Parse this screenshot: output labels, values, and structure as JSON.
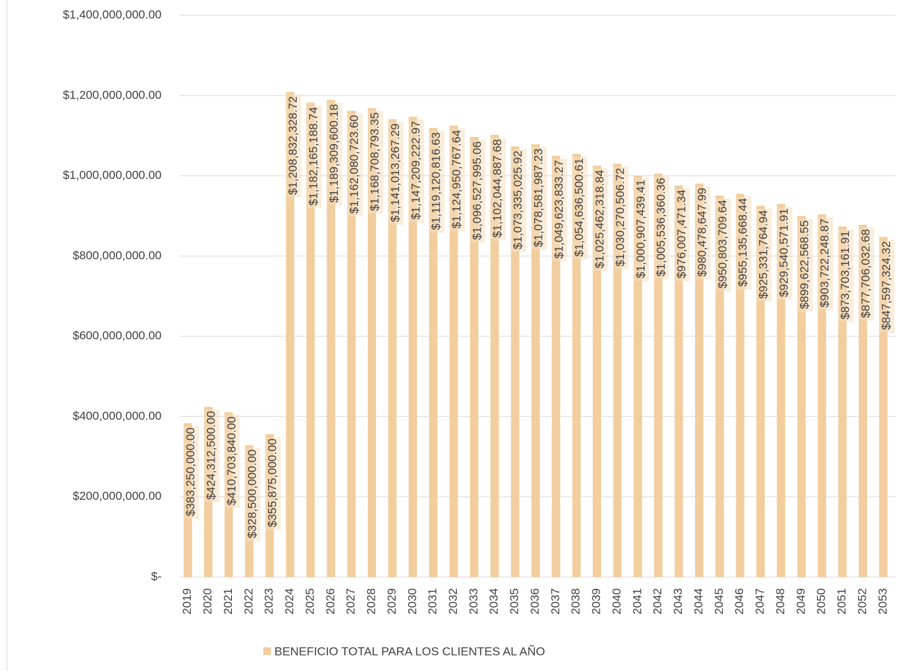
{
  "chart_data": {
    "type": "bar",
    "legend": "BENEFICIO TOTAL PARA LOS CLIENTES AL AÑO",
    "color": "#f2cd9e",
    "categories": [
      "2019",
      "2020",
      "2021",
      "2022",
      "2023",
      "2024",
      "2025",
      "2026",
      "2027",
      "2028",
      "2029",
      "2030",
      "2031",
      "2032",
      "2033",
      "2034",
      "2035",
      "2036",
      "2037",
      "2038",
      "2039",
      "2040",
      "2041",
      "2042",
      "2043",
      "2044",
      "2045",
      "2046",
      "2047",
      "2048",
      "2049",
      "2050",
      "2051",
      "2052",
      "2053"
    ],
    "values": [
      383250000,
      424312500,
      410703840,
      328500000,
      355875000,
      1208832328.72,
      1182165188.74,
      1189309600.18,
      1162080723.6,
      1168708793.35,
      1141013267.29,
      1147209222.97,
      1119120816.63,
      1124950767.64,
      1096527995.06,
      1102044887.68,
      1073335025.92,
      1078581987.23,
      1049623833.27,
      1054636500.61,
      1025462318.84,
      1030270506.72,
      1000907439.41,
      1005536360.36,
      976007471.34,
      980478647.99,
      950803709.64,
      955135668.44,
      925331764.94,
      929540571.91,
      899622568.55,
      903722248.87,
      873703161.91,
      877706032.68,
      847597324.32
    ],
    "value_labels": [
      "$383,250,000.00",
      "$424,312,500.00",
      "$410,703,840.00",
      "$328,500,000.00",
      "$355,875,000.00",
      "$1,208,832,328.72",
      "$1,182,165,188.74",
      "$1,189,309,600.18",
      "$1,162,080,723.60",
      "$1,168,708,793.35",
      "$1,141,013,267.29",
      "$1,147,209,222.97",
      "$1,119,120,816.63",
      "$1,124,950,767.64",
      "$1,096,527,995.06",
      "$1,102,044,887.68",
      "$1,073,335,025.92",
      "$1,078,581,987.23",
      "$1,049,623,833.27",
      "$1,054,636,500.61",
      "$1,025,462,318.84",
      "$1,030,270,506.72",
      "$1,000,907,439.41",
      "$1,005,536,360.36",
      "$976,007,471.34",
      "$980,478,647.99",
      "$950,803,709.64",
      "$955,135,668.44",
      "$925,331,764.94",
      "$929,540,571.91",
      "$899,622,568.55",
      "$903,722,248.87",
      "$873,703,161.91",
      "$877,706,032.68",
      "$847,597,324.32"
    ],
    "ylim": [
      0,
      1400000000
    ],
    "yticks": [
      {
        "value": 0,
        "label": "$-"
      },
      {
        "value": 200000000,
        "label": "$200,000,000.00"
      },
      {
        "value": 400000000,
        "label": "$400,000,000.00"
      },
      {
        "value": 600000000,
        "label": "$600,000,000.00"
      },
      {
        "value": 800000000,
        "label": "$800,000,000.00"
      },
      {
        "value": 1000000000,
        "label": "$1,000,000,000.00"
      },
      {
        "value": 1200000000,
        "label": "$1,200,000,000.00"
      },
      {
        "value": 1400000000,
        "label": "$1,400,000,000.00"
      }
    ],
    "grid": true
  }
}
